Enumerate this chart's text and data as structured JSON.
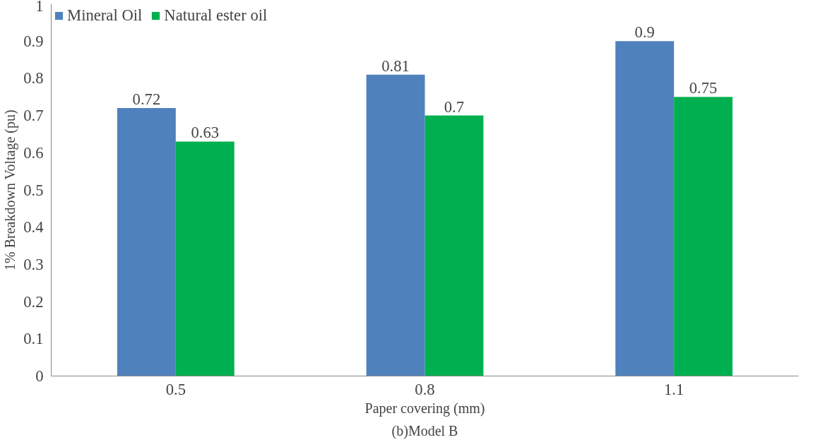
{
  "chart_data": {
    "type": "bar",
    "xlabel": "Paper covering (mm)",
    "ylabel": "1% Breakdown Voltage (pu)",
    "categories": [
      "0.5",
      "0.8",
      "1.1"
    ],
    "series": [
      {
        "name": "Mineral Oil",
        "color": "#4f81bd",
        "values": [
          0.72,
          0.81,
          0.9
        ]
      },
      {
        "name": "Natural ester oil",
        "color": "#00b050",
        "values": [
          0.63,
          0.7,
          0.75
        ]
      }
    ],
    "ylim": [
      0,
      1
    ],
    "yticks": [
      0,
      0.1,
      0.2,
      0.3,
      0.4,
      0.5,
      0.6,
      0.7,
      0.8,
      0.9,
      1
    ],
    "data_labels": true,
    "grid": false,
    "legend": "top left",
    "annotations": [
      "(b)Model B"
    ]
  }
}
